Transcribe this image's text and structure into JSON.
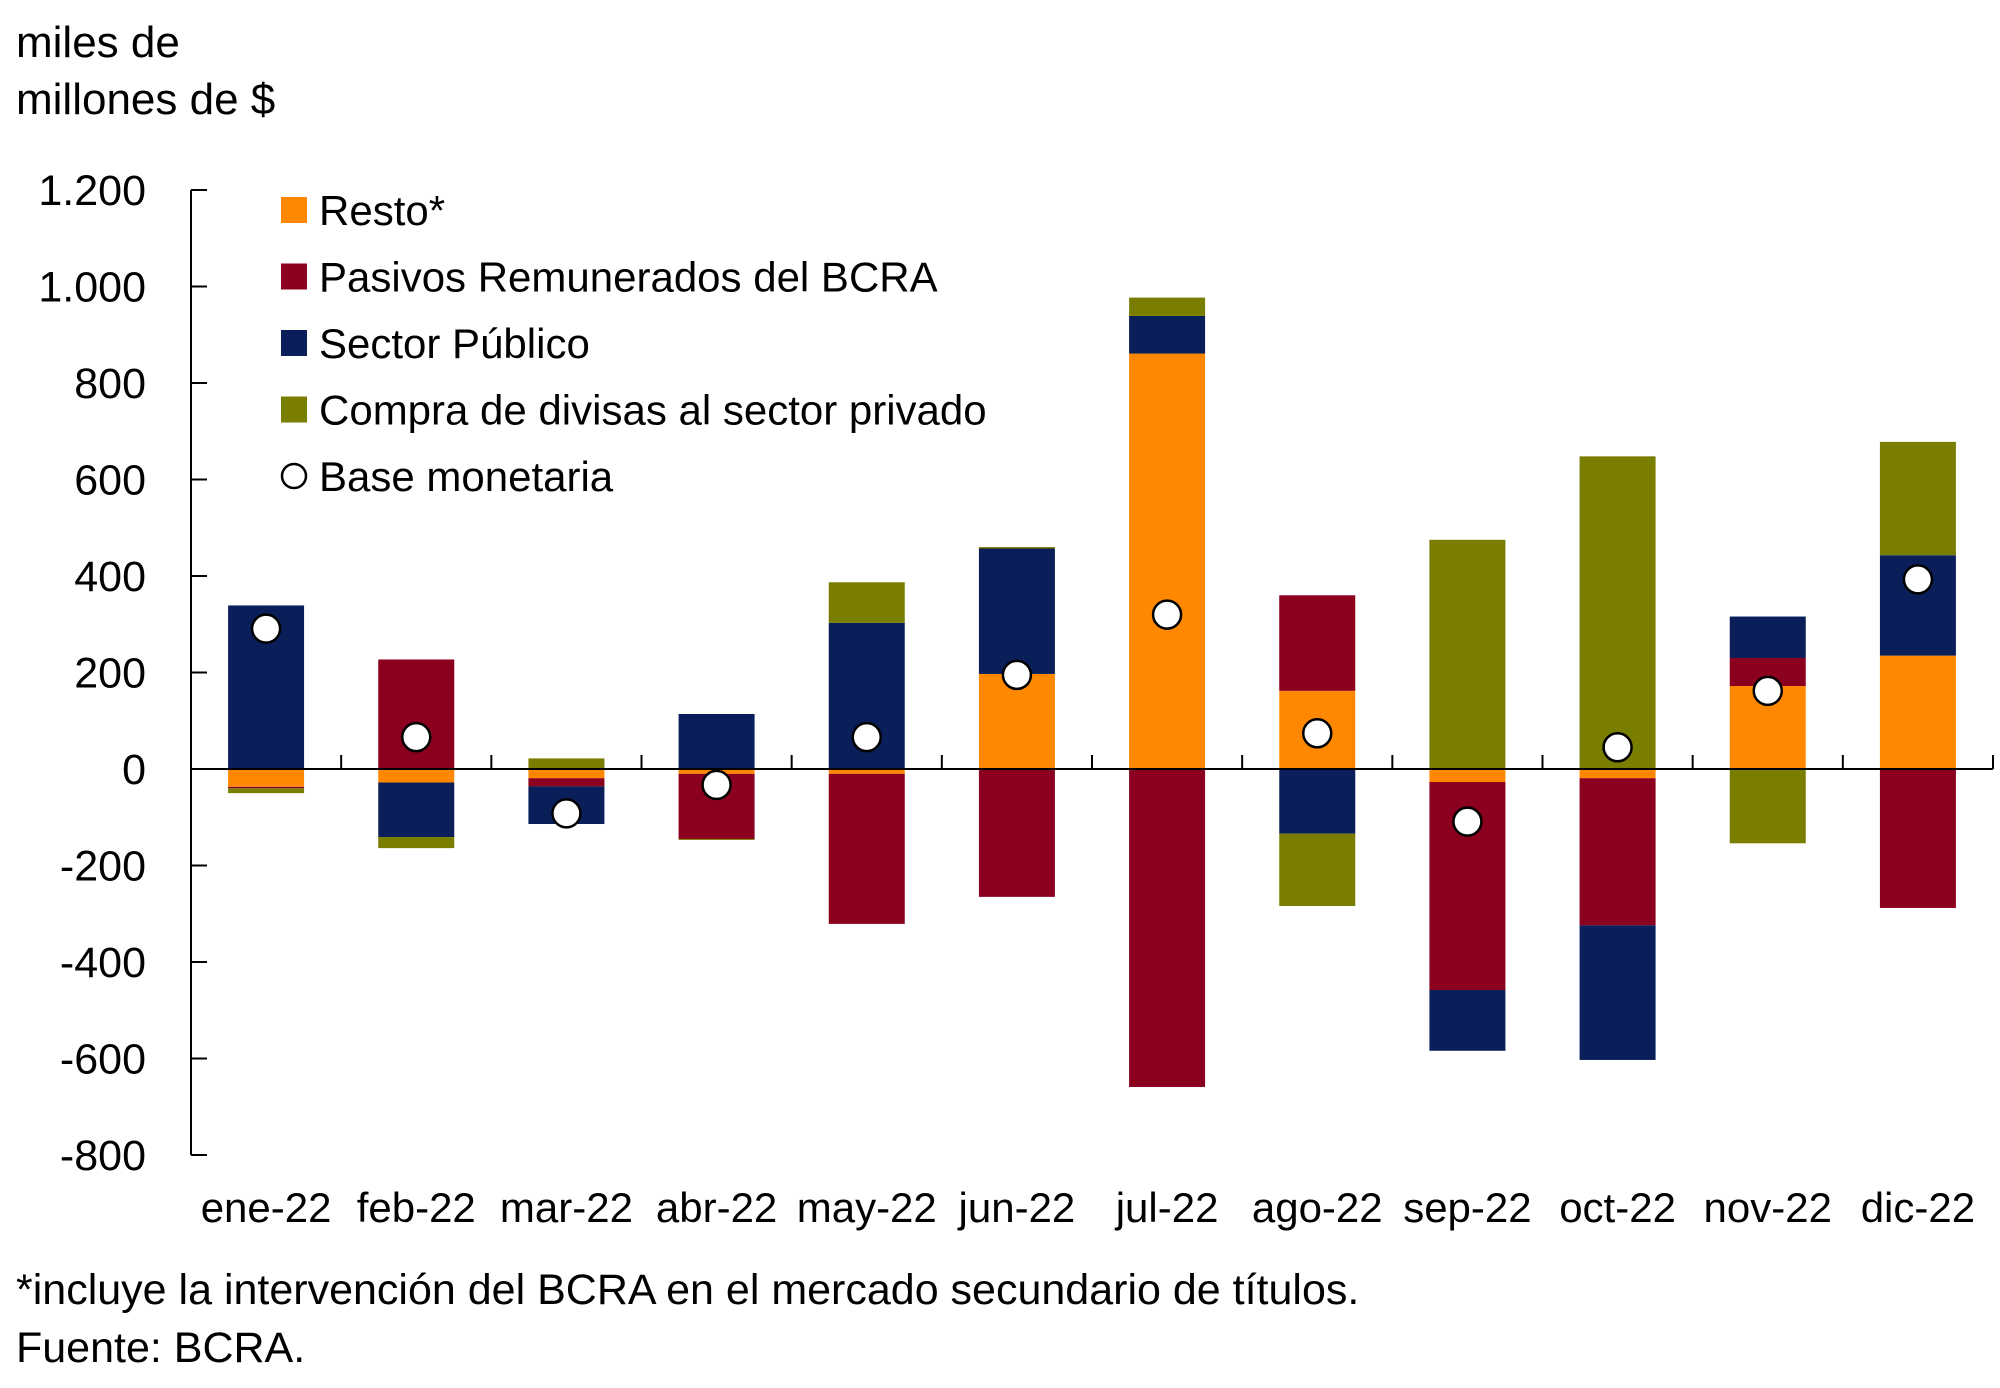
{
  "chart_data": {
    "type": "bar",
    "stacked": true,
    "title": "",
    "ylabel": "miles de millones de $",
    "ylabel_lines": [
      "miles de",
      "millones de $"
    ],
    "xlabel": "",
    "ylim": [
      -800,
      1200
    ],
    "yticks": [
      1200,
      1000,
      800,
      600,
      400,
      200,
      0,
      -200,
      -400,
      -600,
      -800
    ],
    "ytick_labels": [
      "1.200",
      "1.000",
      "800",
      "600",
      "400",
      "200",
      "0",
      "-200",
      "-400",
      "-600",
      "-800"
    ],
    "grid": false,
    "legend_position": "top-left",
    "categories": [
      "ene-22",
      "feb-22",
      "mar-22",
      "abr-22",
      "may-22",
      "jun-22",
      "jul-22",
      "ago-22",
      "sep-22",
      "oct-22",
      "nov-22",
      "dic-22"
    ],
    "series": [
      {
        "name": "Resto*",
        "kind": "bar",
        "color": "#FF8800",
        "values": [
          -37,
          -28,
          -19,
          -10,
          -10,
          197,
          861,
          162,
          -27,
          -19,
          172,
          235
        ]
      },
      {
        "name": "Pasivos Remunerados del BCRA",
        "kind": "bar",
        "color": "#8B001E",
        "values": [
          -3,
          227,
          -17,
          -135,
          -311,
          -265,
          -659,
          198,
          -431,
          -305,
          58,
          -288
        ]
      },
      {
        "name": "Sector Público",
        "kind": "bar",
        "color": "#0A1F5A",
        "values": [
          339,
          -113,
          -78,
          114,
          303,
          260,
          78,
          -134,
          -126,
          -279,
          86,
          208
        ]
      },
      {
        "name": "Compra de divisas al sector privado",
        "kind": "bar",
        "color": "#7A7E00",
        "values": [
          -10,
          -23,
          22,
          -2,
          84,
          3,
          38,
          -150,
          475,
          648,
          -154,
          235
        ]
      },
      {
        "name": "Base monetaria",
        "kind": "marker",
        "marker": "circle",
        "color": "#FFFFFF",
        "values": [
          291,
          66,
          -92,
          -33,
          66,
          195,
          320,
          74,
          -109,
          45,
          162,
          393
        ]
      }
    ],
    "footnotes": [
      "*incluye la intervención del BCRA en el mercado secundario de títulos.",
      "Fuente: BCRA."
    ]
  }
}
